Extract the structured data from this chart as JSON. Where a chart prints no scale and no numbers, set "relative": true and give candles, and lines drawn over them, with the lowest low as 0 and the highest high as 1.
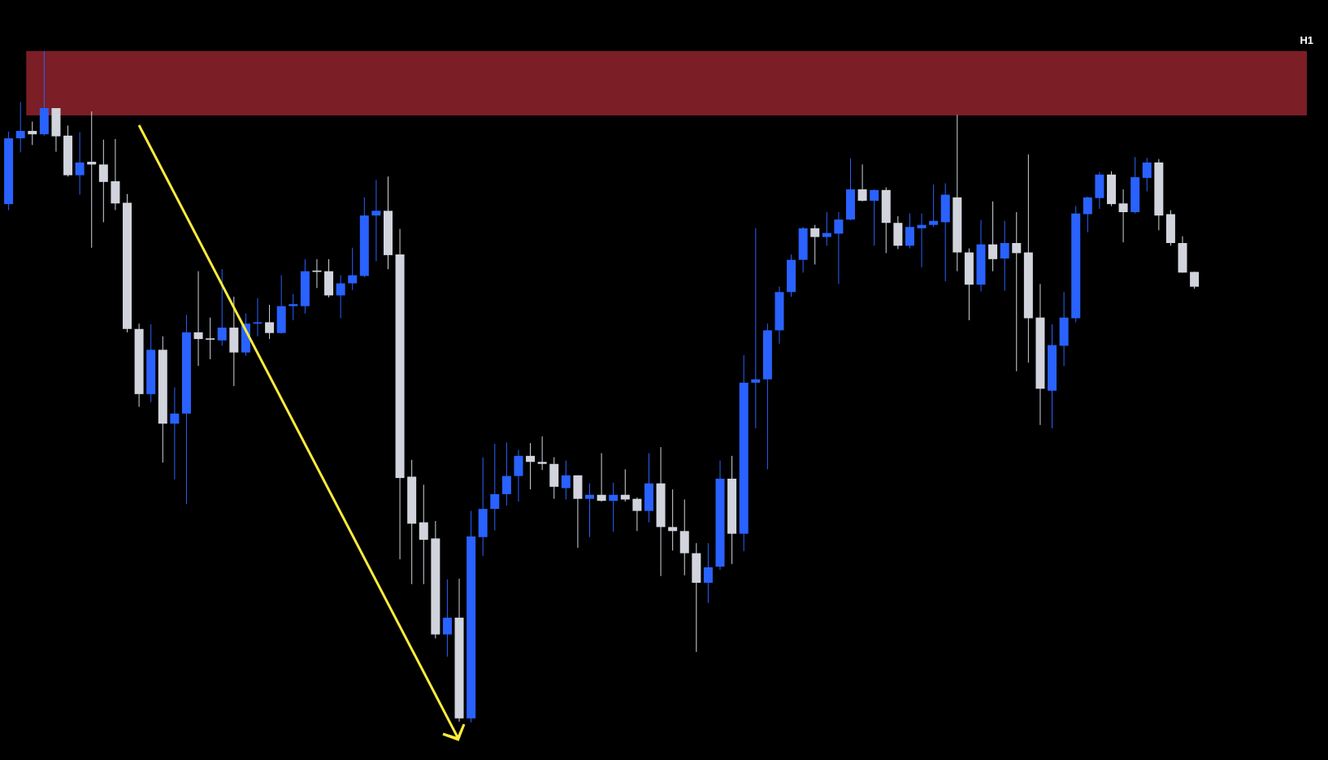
{
  "chart_data": {
    "type": "candlestick",
    "relative": true,
    "annotations": [
      "H1"
    ],
    "categories": [
      null,
      null,
      null,
      null,
      null,
      null,
      null,
      null,
      null,
      null,
      null,
      null,
      null,
      null,
      null,
      null,
      null,
      null,
      null,
      null,
      null,
      null,
      null,
      null,
      null,
      null,
      null,
      null,
      null,
      null,
      null,
      null,
      null,
      null,
      null,
      null,
      null,
      null,
      null,
      null,
      null,
      null,
      null,
      null,
      null,
      null,
      null,
      null,
      null,
      null,
      null,
      null,
      null,
      null,
      null,
      null,
      null,
      null,
      null,
      null,
      null,
      null,
      null,
      null,
      null,
      null,
      null,
      null,
      null,
      null,
      null,
      null,
      null,
      null,
      null,
      null,
      null,
      null,
      null,
      null,
      null,
      null,
      null,
      null,
      null,
      null,
      null,
      null,
      null,
      null,
      null,
      null,
      null,
      null,
      null,
      null,
      null,
      null,
      null,
      null,
      null
    ],
    "ohlc": [
      [
        0.772,
        0.88,
        0.763,
        0.87
      ],
      [
        0.87,
        0.924,
        0.849,
        0.881
      ],
      [
        0.881,
        0.895,
        0.86,
        0.876
      ],
      [
        0.876,
        1.0,
        0.874,
        0.915
      ],
      [
        0.915,
        0.915,
        0.85,
        0.873
      ],
      [
        0.874,
        0.889,
        0.813,
        0.815
      ],
      [
        0.815,
        0.879,
        0.786,
        0.834
      ],
      [
        0.835,
        0.91,
        0.707,
        0.831
      ],
      [
        0.831,
        0.868,
        0.745,
        0.805
      ],
      [
        0.806,
        0.869,
        0.763,
        0.773
      ],
      [
        0.774,
        0.787,
        0.581,
        0.586
      ],
      [
        0.586,
        0.594,
        0.47,
        0.489
      ],
      [
        0.489,
        0.593,
        0.477,
        0.555
      ],
      [
        0.555,
        0.575,
        0.387,
        0.445
      ],
      [
        0.445,
        0.499,
        0.362,
        0.46
      ],
      [
        0.46,
        0.607,
        0.325,
        0.581
      ],
      [
        0.581,
        0.672,
        0.531,
        0.571
      ],
      [
        0.572,
        0.603,
        0.541,
        0.57
      ],
      [
        0.569,
        0.675,
        0.561,
        0.588
      ],
      [
        0.588,
        0.634,
        0.501,
        0.551
      ],
      [
        0.551,
        0.609,
        0.546,
        0.594
      ],
      [
        0.594,
        0.632,
        0.575,
        0.596
      ],
      [
        0.596,
        0.622,
        0.571,
        0.58
      ],
      [
        0.58,
        0.666,
        0.579,
        0.62
      ],
      [
        0.62,
        0.638,
        0.599,
        0.623
      ],
      [
        0.62,
        0.69,
        0.609,
        0.672
      ],
      [
        0.673,
        0.69,
        0.647,
        0.671
      ],
      [
        0.672,
        0.69,
        0.633,
        0.636
      ],
      [
        0.636,
        0.666,
        0.602,
        0.654
      ],
      [
        0.654,
        0.707,
        0.644,
        0.666
      ],
      [
        0.665,
        0.782,
        0.663,
        0.755
      ],
      [
        0.755,
        0.808,
        0.687,
        0.762
      ],
      [
        0.762,
        0.813,
        0.675,
        0.696
      ],
      [
        0.697,
        0.735,
        0.243,
        0.364
      ],
      [
        0.366,
        0.391,
        0.206,
        0.296
      ],
      [
        0.298,
        0.354,
        0.206,
        0.272
      ],
      [
        0.274,
        0.3,
        0.125,
        0.131
      ],
      [
        0.131,
        0.213,
        0.098,
        0.156
      ],
      [
        0.156,
        0.214,
        0.001,
        0.006
      ],
      [
        0.006,
        0.315,
        0.0,
        0.277
      ],
      [
        0.276,
        0.395,
        0.248,
        0.318
      ],
      [
        0.318,
        0.415,
        0.286,
        0.34
      ],
      [
        0.34,
        0.417,
        0.323,
        0.367
      ],
      [
        0.367,
        0.406,
        0.329,
        0.397
      ],
      [
        0.397,
        0.416,
        0.347,
        0.388
      ],
      [
        0.388,
        0.426,
        0.376,
        0.385
      ],
      [
        0.385,
        0.395,
        0.333,
        0.351
      ],
      [
        0.349,
        0.39,
        0.332,
        0.368
      ],
      [
        0.368,
        0.368,
        0.26,
        0.333
      ],
      [
        0.333,
        0.356,
        0.276,
        0.339
      ],
      [
        0.339,
        0.401,
        0.329,
        0.33
      ],
      [
        0.33,
        0.357,
        0.284,
        0.339
      ],
      [
        0.339,
        0.377,
        0.329,
        0.332
      ],
      [
        0.333,
        0.335,
        0.285,
        0.315
      ],
      [
        0.315,
        0.401,
        0.298,
        0.356
      ],
      [
        0.356,
        0.41,
        0.218,
        0.291
      ],
      [
        0.291,
        0.347,
        0.256,
        0.285
      ],
      [
        0.285,
        0.332,
        0.219,
        0.252
      ],
      [
        0.252,
        0.267,
        0.105,
        0.208
      ],
      [
        0.208,
        0.267,
        0.178,
        0.231
      ],
      [
        0.232,
        0.39,
        0.227,
        0.363
      ],
      [
        0.363,
        0.397,
        0.236,
        0.281
      ],
      [
        0.281,
        0.547,
        0.255,
        0.506
      ],
      [
        0.506,
        0.736,
        0.438,
        0.511
      ],
      [
        0.511,
        0.594,
        0.377,
        0.584
      ],
      [
        0.584,
        0.649,
        0.564,
        0.641
      ],
      [
        0.641,
        0.697,
        0.634,
        0.689
      ],
      [
        0.689,
        0.738,
        0.67,
        0.736
      ],
      [
        0.736,
        0.741,
        0.682,
        0.723
      ],
      [
        0.723,
        0.76,
        0.71,
        0.729
      ],
      [
        0.728,
        0.76,
        0.653,
        0.749
      ],
      [
        0.749,
        0.84,
        0.748,
        0.794
      ],
      [
        0.794,
        0.831,
        0.776,
        0.777
      ],
      [
        0.777,
        0.794,
        0.71,
        0.793
      ],
      [
        0.793,
        0.797,
        0.699,
        0.744
      ],
      [
        0.744,
        0.754,
        0.705,
        0.71
      ],
      [
        0.71,
        0.758,
        0.706,
        0.738
      ],
      [
        0.736,
        0.758,
        0.678,
        0.741
      ],
      [
        0.741,
        0.801,
        0.738,
        0.747
      ],
      [
        0.745,
        0.803,
        0.657,
        0.786
      ],
      [
        0.782,
        0.905,
        0.672,
        0.7
      ],
      [
        0.7,
        0.706,
        0.599,
        0.652
      ],
      [
        0.652,
        0.748,
        0.642,
        0.712
      ],
      [
        0.712,
        0.776,
        0.672,
        0.69
      ],
      [
        0.691,
        0.747,
        0.643,
        0.714
      ],
      [
        0.714,
        0.76,
        0.523,
        0.699
      ],
      [
        0.7,
        0.846,
        0.536,
        0.602
      ],
      [
        0.603,
        0.653,
        0.443,
        0.497
      ],
      [
        0.494,
        0.593,
        0.438,
        0.562
      ],
      [
        0.561,
        0.641,
        0.531,
        0.603
      ],
      [
        0.602,
        0.769,
        0.596,
        0.758
      ],
      [
        0.757,
        0.783,
        0.73,
        0.782
      ],
      [
        0.781,
        0.82,
        0.765,
        0.816
      ],
      [
        0.816,
        0.821,
        0.769,
        0.772
      ],
      [
        0.773,
        0.794,
        0.715,
        0.76
      ],
      [
        0.76,
        0.842,
        0.758,
        0.812
      ],
      [
        0.811,
        0.841,
        0.791,
        0.834
      ],
      [
        0.834,
        0.839,
        0.733,
        0.755
      ],
      [
        0.757,
        0.763,
        0.71,
        0.714
      ],
      [
        0.714,
        0.724,
        0.67,
        0.67
      ],
      [
        0.671,
        0.671,
        0.646,
        0.649
      ]
    ],
    "colors": [
      "#2962ff",
      "#2962ff",
      "#d1d4dc",
      "#2962ff",
      "#d1d4dc",
      "#d1d4dc",
      "#2962ff",
      "#d1d4dc",
      "#d1d4dc",
      "#d1d4dc",
      "#d1d4dc",
      "#d1d4dc",
      "#2962ff",
      "#d1d4dc",
      "#2962ff",
      "#2962ff",
      "#d1d4dc",
      "#d1d4dc",
      "#2962ff",
      "#d1d4dc",
      "#2962ff",
      "#2962ff",
      "#d1d4dc",
      "#2962ff",
      "#2962ff",
      "#2962ff",
      "#d1d4dc",
      "#d1d4dc",
      "#2962ff",
      "#2962ff",
      "#2962ff",
      "#2962ff",
      "#d1d4dc",
      "#d1d4dc",
      "#d1d4dc",
      "#d1d4dc",
      "#d1d4dc",
      "#2962ff",
      "#d1d4dc",
      "#2962ff",
      "#2962ff",
      "#2962ff",
      "#2962ff",
      "#2962ff",
      "#d1d4dc",
      "#d1d4dc",
      "#d1d4dc",
      "#2962ff",
      "#d1d4dc",
      "#2962ff",
      "#d1d4dc",
      "#2962ff",
      "#d1d4dc",
      "#d1d4dc",
      "#2962ff",
      "#d1d4dc",
      "#d1d4dc",
      "#d1d4dc",
      "#d1d4dc",
      "#2962ff",
      "#2962ff",
      "#d1d4dc",
      "#2962ff",
      "#2962ff",
      "#2962ff",
      "#2962ff",
      "#2962ff",
      "#2962ff",
      "#d1d4dc",
      "#2962ff",
      "#2962ff",
      "#2962ff",
      "#d1d4dc",
      "#2962ff",
      "#d1d4dc",
      "#d1d4dc",
      "#2962ff",
      "#2962ff",
      "#2962ff",
      "#2962ff",
      "#d1d4dc",
      "#d1d4dc",
      "#2962ff",
      "#d1d4dc",
      "#2962ff",
      "#d1d4dc",
      "#d1d4dc",
      "#d1d4dc",
      "#2962ff",
      "#2962ff",
      "#2962ff",
      "#2962ff",
      "#2962ff",
      "#d1d4dc",
      "#d1d4dc",
      "#2962ff",
      "#2962ff",
      "#d1d4dc",
      "#d1d4dc",
      "#d1d4dc",
      "#d1d4dc"
    ],
    "bands": [
      {
        "axis": "y",
        "from": 0.904,
        "to": 1.0,
        "color": "#7b1e26"
      }
    ]
  }
}
